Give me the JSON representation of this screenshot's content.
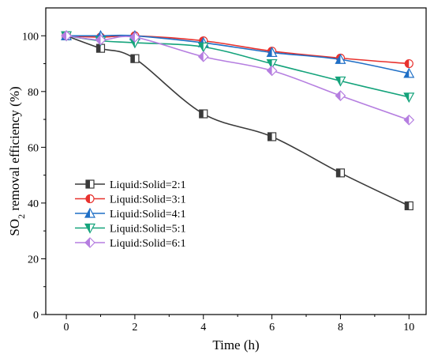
{
  "chart_data": {
    "type": "line",
    "xlabel": "Time (h)",
    "ylabel_main": "SO",
    "ylabel_sub": "2",
    "ylabel_rest": " removal efficiency (%)",
    "xlim": [
      -0.6,
      10.5
    ],
    "ylim": [
      0,
      110
    ],
    "xticks": [
      0,
      2,
      4,
      6,
      8,
      10
    ],
    "yticks": [
      0,
      20,
      40,
      60,
      80,
      100
    ],
    "x": [
      0,
      1,
      2,
      4,
      6,
      8,
      10
    ],
    "legend_position": "center-left",
    "series": [
      {
        "name": "Liquid:Solid=2:1",
        "color": "#3a3a3a",
        "marker": "square",
        "values": [
          100,
          95.5,
          91.8,
          72,
          63.8,
          50.8,
          39
        ]
      },
      {
        "name": "Liquid:Solid=3:1",
        "color": "#e8322e",
        "marker": "circle",
        "values": [
          100,
          99.5,
          100,
          98.2,
          94.5,
          92,
          90
        ]
      },
      {
        "name": "Liquid:Solid=4:1",
        "color": "#1f6fc6",
        "marker": "triangle-up",
        "values": [
          100,
          100,
          100,
          97.5,
          94,
          91.5,
          86.5
        ]
      },
      {
        "name": "Liquid:Solid=5:1",
        "color": "#14a37b",
        "marker": "triangle-down",
        "values": [
          100,
          98.2,
          97.5,
          96,
          90,
          83.8,
          78
        ]
      },
      {
        "name": "Liquid:Solid=6:1",
        "color": "#b57ee0",
        "marker": "diamond",
        "values": [
          100,
          98.5,
          99.5,
          92.5,
          87.5,
          78.5,
          69.8
        ]
      }
    ]
  }
}
